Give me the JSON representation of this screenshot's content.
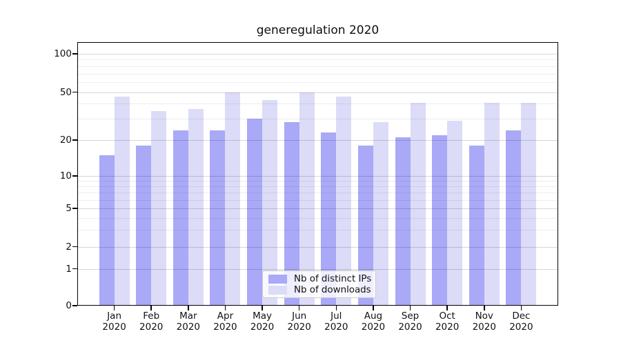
{
  "figure": {
    "background": "#ffffff"
  },
  "chart_data": {
    "type": "bar",
    "title": "generegulation 2020",
    "categories": [
      "Jan 2020",
      "Feb 2020",
      "Mar 2020",
      "Apr 2020",
      "May 2020",
      "Jun 2020",
      "Jul 2020",
      "Aug 2020",
      "Sep 2020",
      "Oct 2020",
      "Nov 2020",
      "Dec 2020"
    ],
    "series": [
      {
        "key": "distinct-ips",
        "name": "Nb of distinct IPs",
        "color": "#a9a9f7",
        "values": [
          15,
          18,
          24,
          24,
          30,
          28,
          23,
          18,
          21,
          22,
          18,
          24
        ]
      },
      {
        "key": "downloads",
        "name": "Nb of downloads",
        "color": "#dcdcf8",
        "values": [
          46,
          35,
          36,
          50,
          43,
          50,
          46,
          28,
          41,
          29,
          41,
          41
        ]
      }
    ],
    "xlabel": "",
    "ylabel": "",
    "yscale": "symlog",
    "ylim": [
      0,
      125
    ],
    "y_ticks": [
      100,
      50,
      20,
      10,
      5,
      2,
      1,
      0
    ],
    "y_major_gridlines": [
      1,
      2,
      5,
      10,
      20,
      50,
      100
    ],
    "y_minor_gridlines": [
      3,
      4,
      6,
      7,
      8,
      9,
      30,
      40,
      60,
      70,
      80,
      90
    ],
    "grid": true,
    "legend_position": "lower center"
  }
}
